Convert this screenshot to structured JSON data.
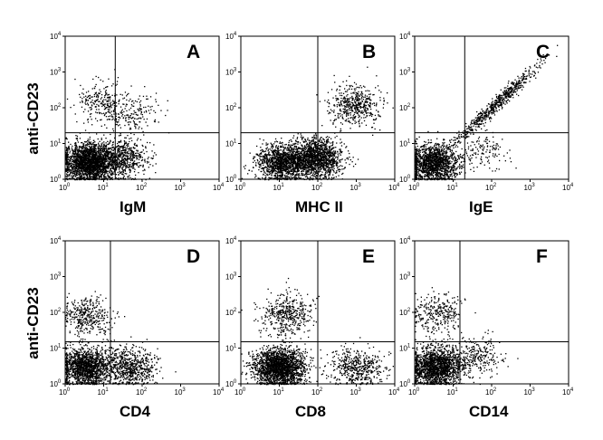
{
  "chart_data": [
    {
      "type": "scatter",
      "panel_letter": "A",
      "xlabel": "IgM",
      "ylabel": "anti-CD23",
      "xscale": "log",
      "yscale": "log",
      "xlim": [
        1,
        10000
      ],
      "ylim": [
        1,
        10000
      ],
      "tick_labels": [
        "10",
        "10",
        "10",
        "10",
        "10"
      ],
      "tick_exponents": [
        "0",
        "1",
        "2",
        "3",
        "4"
      ],
      "quadrant_gate": {
        "x": 20,
        "y": 20
      },
      "populations": [
        {
          "x": 4,
          "y": 3,
          "count": 2200
        },
        {
          "x": 30,
          "y": 4,
          "count": 650
        },
        {
          "x": 8,
          "y": 150,
          "count": 240
        },
        {
          "x": 50,
          "y": 70,
          "count": 200
        }
      ]
    },
    {
      "type": "scatter",
      "panel_letter": "B",
      "xlabel": "MHC II",
      "xscale": "log",
      "yscale": "log",
      "xlim": [
        1,
        10000
      ],
      "ylim": [
        1,
        10000
      ],
      "tick_labels": [
        "10",
        "10",
        "10",
        "10",
        "10"
      ],
      "tick_exponents": [
        "0",
        "1",
        "2",
        "3",
        "4"
      ],
      "quadrant_gate": {
        "x": 100,
        "y": 20
      },
      "populations": [
        {
          "x": 12,
          "y": 3,
          "count": 1300
        },
        {
          "x": 90,
          "y": 4,
          "count": 1500
        },
        {
          "x": 900,
          "y": 120,
          "count": 500
        }
      ]
    },
    {
      "type": "scatter",
      "panel_letter": "C",
      "xlabel": "IgE",
      "xscale": "log",
      "yscale": "log",
      "xlim": [
        1,
        10000
      ],
      "ylim": [
        1,
        10000
      ],
      "tick_labels": [
        "10",
        "10",
        "10",
        "10",
        "10"
      ],
      "tick_exponents": [
        "0",
        "1",
        "2",
        "3",
        "4"
      ],
      "quadrant_gate": {
        "x": 20,
        "y": 20
      },
      "populations": [
        {
          "x": 3,
          "y": 3,
          "count": 1500
        },
        {
          "x": 60,
          "y": 6,
          "count": 130
        },
        {
          "x": 120,
          "y": 120,
          "count": 650,
          "diagonal": true
        }
      ]
    },
    {
      "type": "scatter",
      "panel_letter": "D",
      "xlabel": "CD4",
      "ylabel": "anti-CD23",
      "xscale": "log",
      "yscale": "log",
      "xlim": [
        1,
        10000
      ],
      "ylim": [
        1,
        10000
      ],
      "tick_labels": [
        "10",
        "10",
        "10",
        "10",
        "10"
      ],
      "tick_exponents": [
        "0",
        "1",
        "2",
        "3",
        "4"
      ],
      "quadrant_gate": {
        "x": 15,
        "y": 15
      },
      "populations": [
        {
          "x": 3.5,
          "y": 3,
          "count": 1500
        },
        {
          "x": 50,
          "y": 3,
          "count": 650
        },
        {
          "x": 3.5,
          "y": 80,
          "count": 380
        }
      ]
    },
    {
      "type": "scatter",
      "panel_letter": "E",
      "xlabel": "CD8",
      "xscale": "log",
      "yscale": "log",
      "xlim": [
        1,
        10000
      ],
      "ylim": [
        1,
        10000
      ],
      "tick_labels": [
        "10",
        "10",
        "10",
        "10",
        "10"
      ],
      "tick_exponents": [
        "0",
        "1",
        "2",
        "3",
        "4"
      ],
      "quadrant_gate": {
        "x": 100,
        "y": 15
      },
      "populations": [
        {
          "x": 10,
          "y": 3,
          "count": 2100
        },
        {
          "x": 1000,
          "y": 3,
          "count": 500
        },
        {
          "x": 15,
          "y": 90,
          "count": 450
        }
      ]
    },
    {
      "type": "scatter",
      "panel_letter": "F",
      "xlabel": "CD14",
      "xscale": "log",
      "yscale": "log",
      "xlim": [
        1,
        10000
      ],
      "ylim": [
        1,
        10000
      ],
      "tick_labels": [
        "10",
        "10",
        "10",
        "10",
        "10"
      ],
      "tick_exponents": [
        "0",
        "1",
        "2",
        "3",
        "4"
      ],
      "quadrant_gate": {
        "x": 15,
        "y": 15
      },
      "populations": [
        {
          "x": 3.5,
          "y": 3,
          "count": 1700
        },
        {
          "x": 40,
          "y": 6,
          "count": 260
        },
        {
          "x": 4,
          "y": 100,
          "count": 300
        }
      ]
    }
  ],
  "colors": {
    "dots": "#000000",
    "background": "#ffffff",
    "axes": "#000000"
  }
}
